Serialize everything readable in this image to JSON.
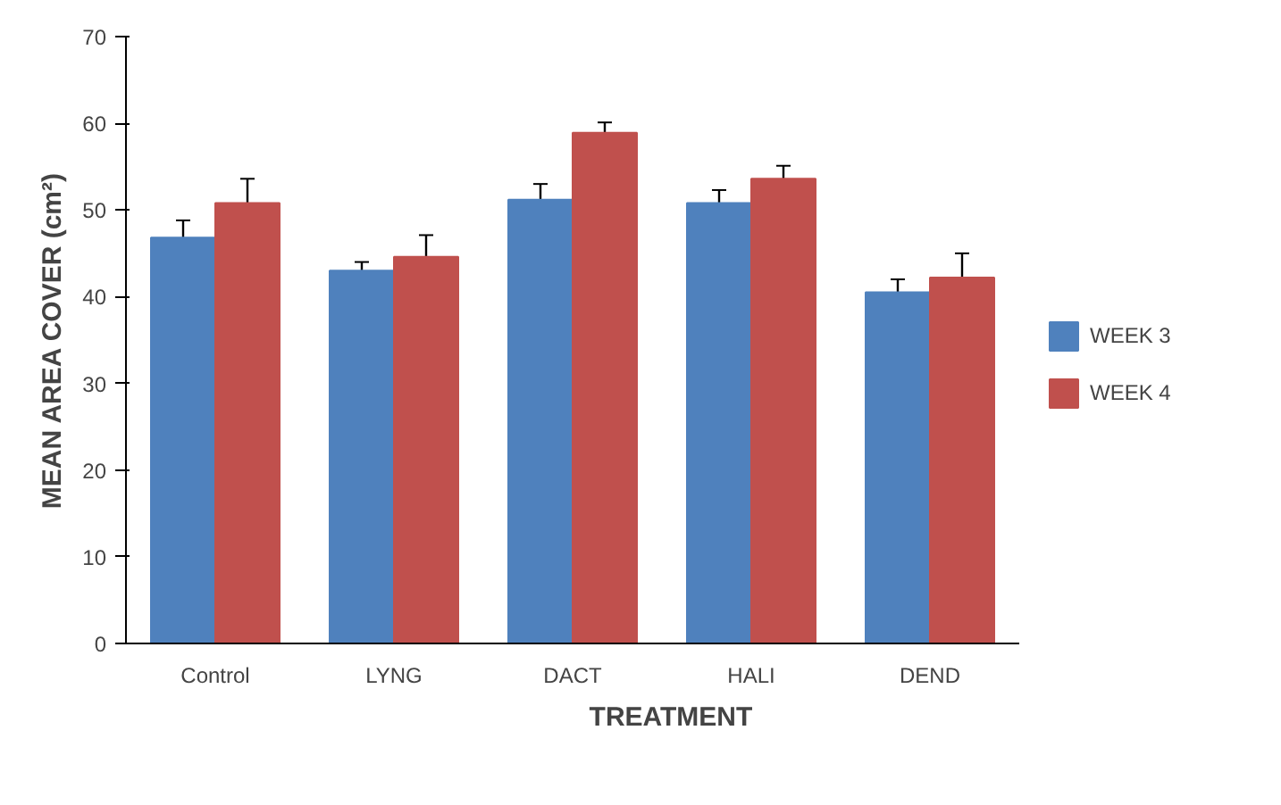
{
  "chart_data": {
    "type": "bar",
    "xlabel": "TREATMENT",
    "ylabel": "MEAN AREA COVER (cm²)",
    "categories": [
      "Control",
      "LYNG",
      "DACT",
      "HALI",
      "DEND"
    ],
    "series": [
      {
        "name": "WEEK 3",
        "color": "#4f81bd",
        "values": [
          46.8,
          43.0,
          51.2,
          50.8,
          40.5
        ],
        "errors": [
          2.0,
          1.0,
          1.8,
          1.5,
          1.5
        ]
      },
      {
        "name": "WEEK 4",
        "color": "#c0504d",
        "values": [
          50.8,
          44.6,
          58.9,
          53.6,
          42.2
        ],
        "errors": [
          2.8,
          2.5,
          1.2,
          1.5,
          2.8
        ]
      }
    ],
    "ylim": [
      0,
      70
    ],
    "yticks": [
      0,
      10,
      20,
      30,
      40,
      50,
      60,
      70
    ],
    "grid": false,
    "legend": "right"
  }
}
